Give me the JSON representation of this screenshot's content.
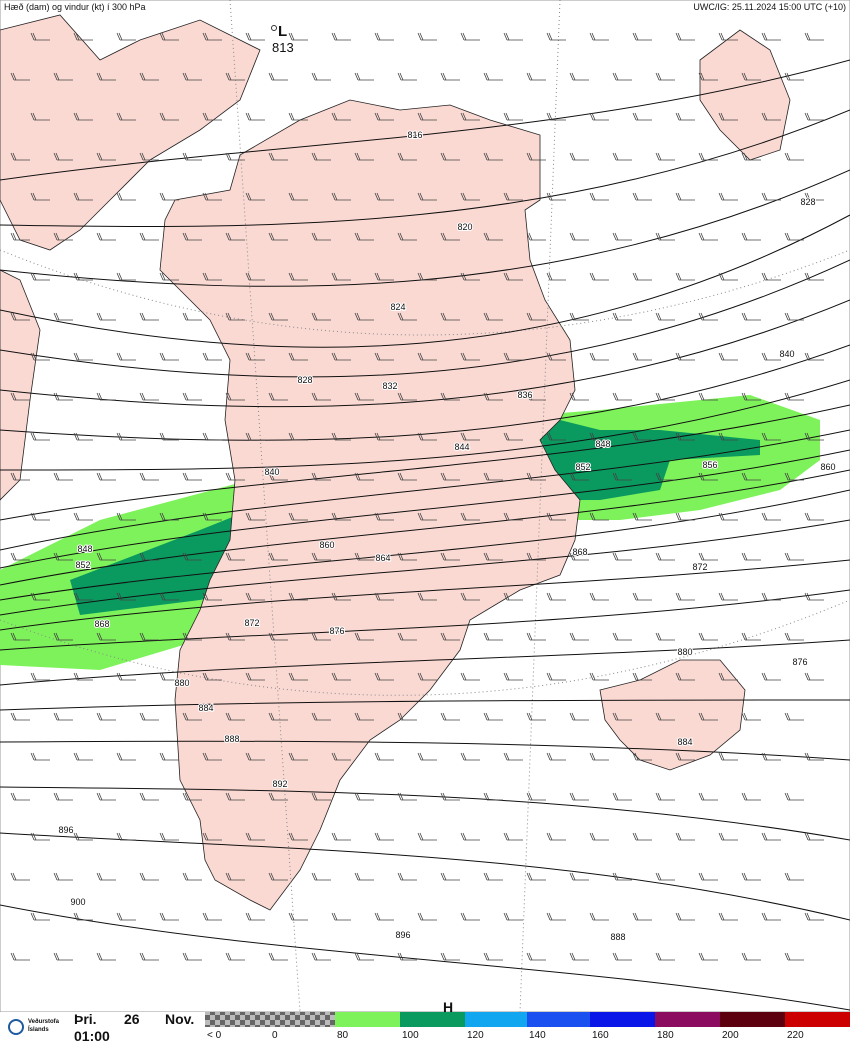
{
  "header": {
    "title": "Hæð (dam) og vindur (kt) í 300 hPa",
    "run": "UWC/IG: 25.11.2024 15:00 UTC (+10)"
  },
  "map": {
    "low": {
      "symbol": "L",
      "value": "813"
    },
    "high": {
      "symbol": "H"
    },
    "contour_labels": [
      816,
      820,
      824,
      828,
      832,
      836,
      840,
      844,
      848,
      852,
      856,
      860,
      860,
      864,
      868,
      872,
      876,
      880,
      884,
      888,
      892,
      896,
      900,
      896,
      888,
      884,
      880,
      876,
      872,
      868,
      840,
      828,
      848,
      852
    ]
  },
  "footer": {
    "logo_line1": "Veðurstofa",
    "logo_line2": "Íslands",
    "weekday": "Þri.",
    "day": 26,
    "month": "Nov.",
    "time": "01:00"
  },
  "legend": {
    "labels": [
      "< 0",
      0,
      80,
      100,
      120,
      140,
      160,
      180,
      200,
      220
    ],
    "colors": [
      "#7ef25a",
      "#0a9a60",
      "#12a6f0",
      "#1a4ff0",
      "#0a16e8",
      "#8a0b5f",
      "#5c0010",
      "#cc0000"
    ]
  }
}
